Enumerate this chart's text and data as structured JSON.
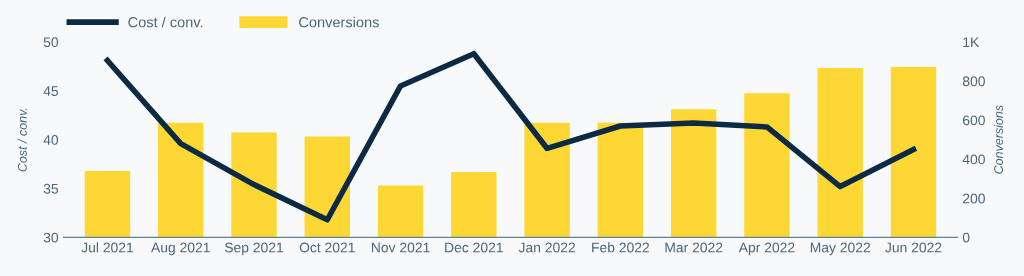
{
  "chart_data": {
    "type": "bar",
    "ylabel": "Cost / conv.",
    "y2label": "Conversions",
    "categories": [
      "Jul 2021",
      "Aug 2021",
      "Sep 2021",
      "Oct 2021",
      "Nov 2021",
      "Dec 2021",
      "Jan 2022",
      "Feb 2022",
      "Mar 2022",
      "Apr 2022",
      "May 2022",
      "Jun 2022"
    ],
    "series": [
      {
        "name": "Cost / conv.",
        "type": "line",
        "color": "#0d2a45",
        "values": [
          48.1,
          39.6,
          35.4,
          31.8,
          45.5,
          48.8,
          39.1,
          41.4,
          41.7,
          41.3,
          35.2,
          39.0
        ]
      },
      {
        "name": "Conversions",
        "axis": "y2",
        "color": "#fdd835",
        "values": [
          340,
          586,
          537,
          516,
          265,
          335,
          586,
          586,
          656,
          737,
          867,
          872
        ]
      }
    ],
    "ylim": [
      30,
      50
    ],
    "yticks": [
      30,
      35,
      40,
      45,
      50
    ],
    "y2lim": [
      0,
      1000
    ],
    "y2ticks": [
      0,
      200,
      400,
      600,
      800,
      {
        "value": 1000,
        "label": "1K"
      }
    ],
    "legend": "top left",
    "grid": false,
    "marker": "none",
    "line_style": "solid"
  }
}
